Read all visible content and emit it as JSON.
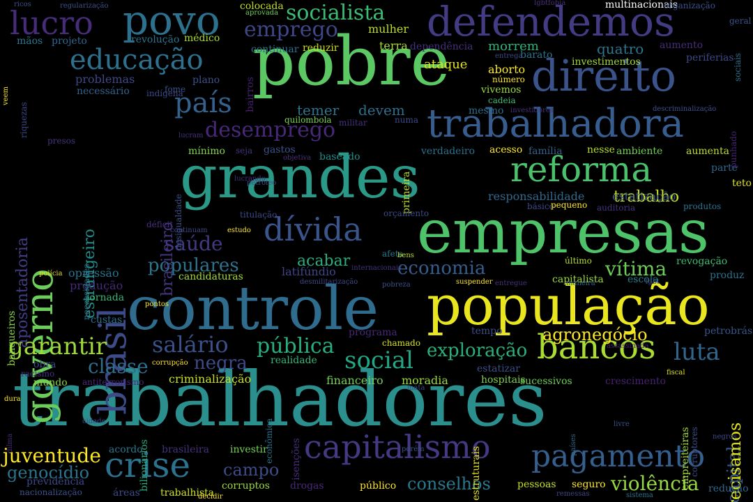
{
  "words": [
    {
      "text": "trabalhadores",
      "color": "#2a8f8d"
    },
    {
      "text": "população",
      "color": "#e9e61f"
    },
    {
      "text": "controle",
      "color": "#2f6c8e"
    },
    {
      "text": "empresas",
      "color": "#4fc36a"
    },
    {
      "text": "grandes",
      "color": "#2a9987"
    },
    {
      "text": "pobre",
      "color": "#5cc863"
    },
    {
      "text": "governo",
      "color": "#6ccd5a"
    },
    {
      "text": "direito",
      "color": "#3b538b"
    },
    {
      "text": "defendemos",
      "color": "#433b83"
    },
    {
      "text": "trabalhadora",
      "color": "#365d8d"
    },
    {
      "text": "reforma",
      "color": "#4bc16c"
    },
    {
      "text": "brasil",
      "color": "#3d4c89"
    },
    {
      "text": "dívida",
      "color": "#3a548c"
    },
    {
      "text": "povo",
      "color": "#2c728e"
    },
    {
      "text": "lucro",
      "color": "#472c7a"
    },
    {
      "text": "capitalismo",
      "color": "#443983"
    },
    {
      "text": "pagamento",
      "color": "#355f8d"
    },
    {
      "text": "crise",
      "color": "#2c728e"
    },
    {
      "text": "bancos",
      "color": "#aadc32"
    },
    {
      "text": "educação",
      "color": "#2d718e"
    },
    {
      "text": "país",
      "color": "#33628d"
    },
    {
      "text": "desemprego",
      "color": "#482878"
    },
    {
      "text": "socialista",
      "color": "#3cbb75"
    },
    {
      "text": "emprego",
      "color": "#3f4788"
    },
    {
      "text": "garantir",
      "color": "#9fda3a"
    },
    {
      "text": "salário",
      "color": "#3b518b"
    },
    {
      "text": "pública",
      "color": "#29af7f"
    },
    {
      "text": "social",
      "color": "#22a785"
    },
    {
      "text": "luta",
      "color": "#31678e"
    },
    {
      "text": "saúde",
      "color": "#443a83"
    },
    {
      "text": "classe",
      "color": "#2e6f8e"
    },
    {
      "text": "negra",
      "color": "#3e4a89"
    },
    {
      "text": "economia",
      "color": "#355e8d"
    },
    {
      "text": "populares",
      "color": "#2c738e"
    },
    {
      "text": "exploração",
      "color": "#2ab07f"
    },
    {
      "text": "agronegócio",
      "color": "#fde725"
    },
    {
      "text": "violência",
      "color": "#95d840"
    },
    {
      "text": "vítima",
      "color": "#6ece58"
    },
    {
      "text": "juventude",
      "color": "#fde725"
    },
    {
      "text": "campo",
      "color": "#3e4c8a"
    },
    {
      "text": "conselhos",
      "color": "#2a788e"
    },
    {
      "text": "genocídio",
      "color": "#2c738e"
    },
    {
      "text": "capital",
      "color": "#375a8c"
    },
    {
      "text": "precisamos",
      "color": "#e2e418"
    },
    {
      "text": "estrangeiro",
      "color": "#218f8d"
    },
    {
      "text": "aposentadoria",
      "color": "#433e85"
    },
    {
      "text": "brasileiro",
      "color": "#453581"
    },
    {
      "text": "trabalho",
      "color": "#c8e020"
    },
    {
      "text": "acabar",
      "color": "#29af7f"
    },
    {
      "text": "temer",
      "color": "#2b758e"
    },
    {
      "text": "devem",
      "color": "#2d718e"
    },
    {
      "text": "quatro",
      "color": "#2a788e"
    },
    {
      "text": "morrem",
      "color": "#2fb47c"
    },
    {
      "text": "ataque",
      "color": "#e5e419"
    },
    {
      "text": "aborto",
      "color": "#fde725"
    },
    {
      "text": "mulher",
      "color": "#c0df25"
    },
    {
      "text": "terra",
      "color": "#a8db34"
    },
    {
      "text": "colocada",
      "color": "#c2df23"
    },
    {
      "text": "responsabilidade",
      "color": "#31688e"
    },
    {
      "text": "estatização",
      "color": "#38588c"
    },
    {
      "text": "financeiro",
      "color": "#75d054"
    },
    {
      "text": "moradia",
      "color": "#9bd93c"
    },
    {
      "text": "criminalização",
      "color": "#cae11f"
    },
    {
      "text": "opressão",
      "color": "#2b748e"
    },
    {
      "text": "produção",
      "color": "#472a7a"
    },
    {
      "text": "candidaturas",
      "color": "#a5db36"
    },
    {
      "text": "latifúndio",
      "color": "#414487"
    },
    {
      "text": "revogação",
      "color": "#3fbc73"
    },
    {
      "text": "escola",
      "color": "#26828e"
    },
    {
      "text": "capitalista",
      "color": "#a0da39"
    },
    {
      "text": "problemas",
      "color": "#3e4989"
    },
    {
      "text": "necessário",
      "color": "#33638d"
    },
    {
      "text": "revolução",
      "color": "#2c738e"
    },
    {
      "text": "projeto",
      "color": "#31678e"
    },
    {
      "text": "mãos",
      "color": "#29798e"
    },
    {
      "text": "médico",
      "color": "#aadc32"
    },
    {
      "text": "plano",
      "color": "#3b528b"
    },
    {
      "text": "bairros",
      "color": "#482071"
    },
    {
      "text": "continuar",
      "color": "#2c728e"
    },
    {
      "text": "reduzir",
      "color": "#d0e11c"
    },
    {
      "text": "dependência",
      "color": "#46307e"
    },
    {
      "text": "investimentos",
      "color": "#a2da37"
    },
    {
      "text": "periferias",
      "color": "#3e4989"
    },
    {
      "text": "aumento",
      "color": "#472d7b"
    },
    {
      "text": "barato",
      "color": "#2a768e"
    },
    {
      "text": "número",
      "color": "#fde725"
    },
    {
      "text": "vivemos",
      "color": "#9bd93c"
    },
    {
      "text": "mínimo",
      "color": "#84d44b"
    },
    {
      "text": "seja",
      "color": "#46337f"
    },
    {
      "text": "gastos",
      "color": "#3a548c"
    },
    {
      "text": "baseado",
      "color": "#21918c"
    },
    {
      "text": "verdadeiro",
      "color": "#2c718e"
    },
    {
      "text": "acesso",
      "color": "#fde725"
    },
    {
      "text": "família",
      "color": "#34618d"
    },
    {
      "text": "nesse",
      "color": "#b8de29"
    },
    {
      "text": "ambiente",
      "color": "#73d056"
    },
    {
      "text": "aumenta",
      "color": "#bddf26"
    },
    {
      "text": "parte",
      "color": "#31688e"
    },
    {
      "text": "teto",
      "color": "#dfe318"
    },
    {
      "text": "produtos",
      "color": "#2c738e"
    },
    {
      "text": "básico",
      "color": "#3e4989"
    },
    {
      "text": "pequeno",
      "color": "#fde725"
    },
    {
      "text": "auditoria",
      "color": "#46337f"
    },
    {
      "text": "último",
      "color": "#b5de2b"
    },
    {
      "text": "produz",
      "color": "#2c728e"
    },
    {
      "text": "petrobrás",
      "color": "#39568c"
    },
    {
      "text": "tempo",
      "color": "#3e4a89"
    },
    {
      "text": "programa",
      "color": "#472878"
    },
    {
      "text": "chamado",
      "color": "#d5e21a"
    },
    {
      "text": "estatizar",
      "color": "#3c4f8a"
    },
    {
      "text": "hospitais",
      "color": "#7fd34e"
    },
    {
      "text": "sucessivos",
      "color": "#6ece58"
    },
    {
      "text": "crescimento",
      "color": "#482173"
    },
    {
      "text": "jornada",
      "color": "#35b779"
    },
    {
      "text": "custas",
      "color": "#2c738e"
    },
    {
      "text": "obra",
      "color": "#3e4989"
    },
    {
      "text": "mundo",
      "color": "#86d549"
    },
    {
      "text": "acordo",
      "color": "#2a778e"
    },
    {
      "text": "brasileira",
      "color": "#46327e"
    },
    {
      "text": "investir",
      "color": "#75d054"
    },
    {
      "text": "drogas",
      "color": "#472a7a"
    },
    {
      "text": "público",
      "color": "#fde725"
    },
    {
      "text": "pessoas",
      "color": "#c8e020"
    },
    {
      "text": "seguro",
      "color": "#fde725"
    },
    {
      "text": "redução",
      "color": "#31688e"
    },
    {
      "text": "corruptos",
      "color": "#9bd93c"
    },
    {
      "text": "áreas",
      "color": "#3e4a89"
    },
    {
      "text": "trabalhista",
      "color": "#d2e21b"
    },
    {
      "text": "previdência",
      "color": "#3e4989"
    },
    {
      "text": "nacionalização",
      "color": "#3b528b"
    },
    {
      "text": "realidade",
      "color": "#35b779"
    },
    {
      "text": "bilionários",
      "color": "#26ad81"
    },
    {
      "text": "econômica",
      "color": "#2b758e"
    },
    {
      "text": "isenções",
      "color": "#472e7c"
    },
    {
      "text": "estruturais",
      "color": "#e7e419"
    },
    {
      "text": "empreiteiras",
      "color": "#a5db36"
    },
    {
      "text": "corruptores",
      "color": "#3b528b"
    },
    {
      "text": "banqueiros",
      "color": "#8bd646"
    },
    {
      "text": "necessidades",
      "color": "#2a788e"
    },
    {
      "text": "desigualdade",
      "color": "#3b528b"
    },
    {
      "text": "primeira",
      "color": "#c2df23"
    },
    {
      "text": "riquezas",
      "color": "#3e4989"
    },
    {
      "text": "sociais",
      "color": "#2c728e"
    },
    {
      "text": "punhado",
      "color": "#482475"
    },
    {
      "text": "mesmo",
      "color": "#2d708e"
    },
    {
      "text": "cadeia",
      "color": "#3fbc73"
    },
    {
      "text": "quilombola",
      "color": "#7ad151"
    },
    {
      "text": "militar",
      "color": "#46307e"
    },
    {
      "text": "numa",
      "color": "#3e4989"
    },
    {
      "text": "indígena",
      "color": "#3e4989"
    },
    {
      "text": "fome",
      "color": "#3b528b"
    },
    {
      "text": "presos",
      "color": "#46327e"
    },
    {
      "text": "déficit",
      "color": "#46327e"
    },
    {
      "text": "titulação",
      "color": "#3e4989"
    },
    {
      "text": "estudo",
      "color": "#fde725"
    },
    {
      "text": "orçamento",
      "color": "#3e4989"
    },
    {
      "text": "afeta",
      "color": "#2a788e"
    },
    {
      "text": "bens",
      "color": "#c2df23"
    },
    {
      "text": "polícia",
      "color": "#e7e419"
    },
    {
      "text": "suspender",
      "color": "#fde725"
    },
    {
      "text": "entregue",
      "color": "#46327e"
    },
    {
      "text": "maneira",
      "color": "#31688e"
    },
    {
      "text": "lgbt",
      "color": "#3e4989"
    },
    {
      "text": "fiscal",
      "color": "#e2e418"
    },
    {
      "text": "assassinada",
      "color": "#482475"
    },
    {
      "text": "desmilitarização",
      "color": "#3e4989"
    },
    {
      "text": "internacionais",
      "color": "#46327e"
    },
    {
      "text": "pobreza",
      "color": "#3b528b"
    },
    {
      "text": "racismo",
      "color": "#46327e"
    },
    {
      "text": "antiterrorismo",
      "color": "#472a7a"
    },
    {
      "text": "corrupção",
      "color": "#fde725"
    },
    {
      "text": "dilma",
      "color": "#472a7a"
    },
    {
      "text": "dura",
      "color": "#fde725"
    },
    {
      "text": "pontos",
      "color": "#fde725"
    },
    {
      "text": "cidade",
      "color": "#3e4989"
    },
    {
      "text": "países",
      "color": "#31688e"
    },
    {
      "text": "livre",
      "color": "#3b528b"
    },
    {
      "text": "negros",
      "color": "#3e4989"
    },
    {
      "text": "remessas",
      "color": "#3e4989"
    },
    {
      "text": "sistema",
      "color": "#2c728e"
    },
    {
      "text": "decidir",
      "color": "#fde725"
    },
    {
      "text": "porém",
      "color": "#3b528b"
    },
    {
      "text": "mata",
      "color": "#3e4989"
    },
    {
      "text": "geral",
      "color": "#3b528b"
    },
    {
      "text": "multinacionais",
      "color": "#ffffff"
    },
    {
      "text": "organização",
      "color": "#3b528b"
    },
    {
      "text": "lgbtfobia",
      "color": "#46327e"
    },
    {
      "text": "aprovada",
      "color": "#6ece58"
    },
    {
      "text": "regularização",
      "color": "#3b528b"
    },
    {
      "text": "ricos",
      "color": "#3b528b"
    },
    {
      "text": "entrega",
      "color": "#3e4989"
    },
    {
      "text": "investidores",
      "color": "#46327e"
    },
    {
      "text": "descriminalização",
      "color": "#3b528b"
    },
    {
      "text": "lucrando",
      "color": "#46327e"
    },
    {
      "text": "lucram",
      "color": "#46327e"
    },
    {
      "text": "objetiva",
      "color": "#46327e"
    },
    {
      "text": "petróleo",
      "color": "#3b528b"
    },
    {
      "text": "continuam",
      "color": "#3e4989"
    },
    {
      "text": "veem",
      "color": "#fde725"
    }
  ]
}
